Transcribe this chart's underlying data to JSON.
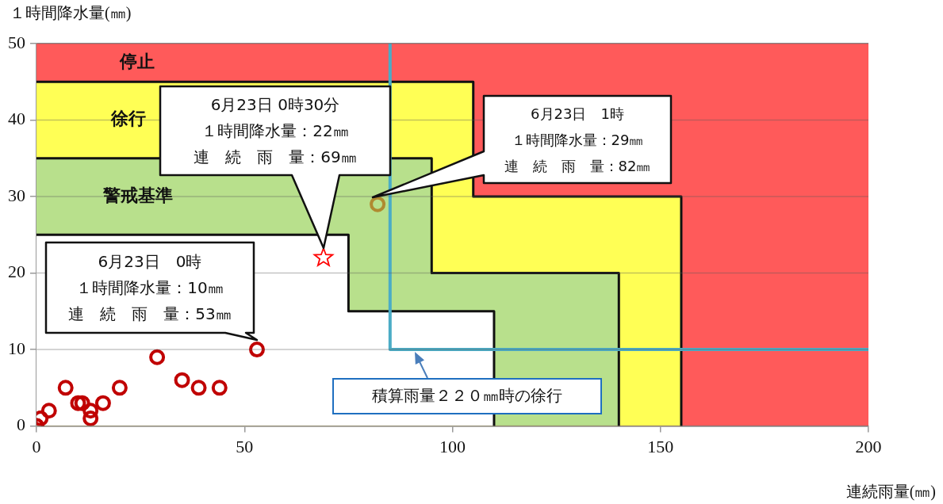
{
  "chart_data": {
    "type": "scatter",
    "xlabel": "連続雨量(㎜)",
    "ylabel": "１時間降水量(㎜)",
    "xlim": [
      0,
      200
    ],
    "ylim": [
      0,
      50
    ],
    "xticks": [
      0,
      50,
      100,
      150,
      200
    ],
    "yticks": [
      0,
      10,
      20,
      30,
      40,
      50
    ],
    "grid": "y",
    "legend": false,
    "series": [
      {
        "type": "area",
        "name": "停止",
        "color": "#ff5a5a",
        "x": [
          0,
          200
        ],
        "values": [
          50,
          50
        ]
      },
      {
        "type": "area",
        "name": "徐行",
        "color": "#ffff55",
        "x": [
          0,
          105,
          105,
          155,
          155
        ],
        "values": [
          45,
          45,
          30,
          30,
          0
        ]
      },
      {
        "type": "area",
        "name": "警戒基準",
        "color": "#b8e08c",
        "x": [
          0,
          95,
          95,
          140,
          140
        ],
        "values": [
          35,
          35,
          20,
          20,
          0
        ]
      },
      {
        "type": "area",
        "color": "#ffffff",
        "x": [
          0,
          75,
          75,
          110,
          110
        ],
        "values": [
          25,
          25,
          15,
          15,
          0
        ]
      },
      {
        "type": "line",
        "color": "#4bacc6",
        "x": [
          85,
          85,
          200
        ],
        "values": [
          50,
          10,
          10
        ]
      },
      {
        "marker": "circle",
        "color": "#c00000",
        "x": [
          0,
          0,
          1,
          3,
          7,
          10,
          11,
          13,
          13,
          16,
          20,
          29,
          35,
          39,
          44,
          53
        ],
        "values": [
          0,
          0,
          1,
          2,
          5,
          3,
          3,
          2,
          1,
          3,
          5,
          9,
          6,
          5,
          5,
          10
        ]
      },
      {
        "marker": "star",
        "color": "#ff0000",
        "x": [
          69
        ],
        "values": [
          22
        ]
      },
      {
        "marker": "circle",
        "color": "#b08a30",
        "x": [
          82
        ],
        "values": [
          29
        ]
      }
    ],
    "annotations": [
      "6月23日　0時",
      "１時間降水量：10㎜",
      "連　続　雨　量：53㎜",
      "6月23日 0時30分",
      "１時間降水量：22㎜",
      "連　続　雨　量：69㎜",
      "6月23日　1時",
      "１時間降水量：29㎜",
      "連　続　雨　量：82㎜",
      {
        "text": "積算雨量２２０㎜時の徐行",
        "x": 91,
        "y": 10
      }
    ]
  }
}
